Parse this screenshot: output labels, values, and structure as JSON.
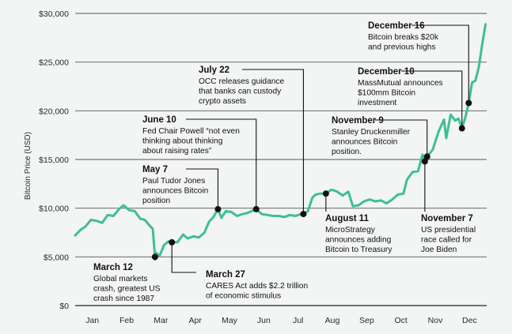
{
  "chart_data": {
    "type": "line",
    "title": "",
    "xlabel": "",
    "ylabel": "Bitcoin Price (USD)",
    "ylim": [
      0,
      30000
    ],
    "yticks": [
      0,
      5000,
      10000,
      15000,
      20000,
      25000,
      30000
    ],
    "ytick_labels": [
      "$0",
      "$5,000",
      "$10,000",
      "$15,000",
      "$20,000",
      "$25,000",
      "$30,000"
    ],
    "xlim": [
      "2020-01-01",
      "2021-01-01"
    ],
    "xticks": [
      "Jan",
      "Feb",
      "Mar",
      "Apr",
      "May",
      "Jun",
      "Jul",
      "Aug",
      "Sep",
      "Oct",
      "Nov",
      "Dec"
    ],
    "grid": "horizontal",
    "line_color": "#3dbf94",
    "series": [
      {
        "name": "",
        "x": [
          "2020-01-01",
          "2020-01-06",
          "2020-01-10",
          "2020-01-15",
          "2020-01-20",
          "2020-01-25",
          "2020-01-30",
          "2020-02-04",
          "2020-02-09",
          "2020-02-13",
          "2020-02-18",
          "2020-02-23",
          "2020-02-28",
          "2020-03-03",
          "2020-03-08",
          "2020-03-10",
          "2020-03-12",
          "2020-03-13",
          "2020-03-16",
          "2020-03-20",
          "2020-03-24",
          "2020-03-27",
          "2020-04-01",
          "2020-04-06",
          "2020-04-10",
          "2020-04-15",
          "2020-04-20",
          "2020-04-25",
          "2020-04-29",
          "2020-05-03",
          "2020-05-07",
          "2020-05-10",
          "2020-05-14",
          "2020-05-19",
          "2020-05-24",
          "2020-05-29",
          "2020-06-02",
          "2020-06-06",
          "2020-06-10",
          "2020-06-15",
          "2020-06-20",
          "2020-06-25",
          "2020-06-30",
          "2020-07-05",
          "2020-07-10",
          "2020-07-15",
          "2020-07-20",
          "2020-07-22",
          "2020-07-26",
          "2020-07-30",
          "2020-08-02",
          "2020-08-06",
          "2020-08-11",
          "2020-08-16",
          "2020-08-21",
          "2020-08-26",
          "2020-08-31",
          "2020-09-04",
          "2020-09-09",
          "2020-09-14",
          "2020-09-19",
          "2020-09-24",
          "2020-09-29",
          "2020-10-04",
          "2020-10-09",
          "2020-10-14",
          "2020-10-19",
          "2020-10-22",
          "2020-10-27",
          "2020-11-01",
          "2020-11-05",
          "2020-11-07",
          "2020-11-09",
          "2020-11-14",
          "2020-11-19",
          "2020-11-24",
          "2020-11-26",
          "2020-11-30",
          "2020-12-04",
          "2020-12-07",
          "2020-12-10",
          "2020-12-13",
          "2020-12-16",
          "2020-12-19",
          "2020-12-22",
          "2020-12-25",
          "2020-12-28",
          "2020-12-31"
        ],
        "y": [
          7200,
          7800,
          8100,
          8800,
          8700,
          8500,
          9300,
          9200,
          9900,
          10300,
          9800,
          9700,
          8900,
          8800,
          8100,
          7900,
          5000,
          5400,
          5100,
          6200,
          6600,
          6500,
          6500,
          7300,
          6900,
          7100,
          7000,
          7500,
          8600,
          9100,
          9900,
          9000,
          9700,
          9600,
          9200,
          9400,
          9500,
          9700,
          9900,
          9400,
          9300,
          9200,
          9200,
          9100,
          9300,
          9200,
          9400,
          9400,
          9700,
          11100,
          11400,
          11500,
          11500,
          11900,
          11700,
          11300,
          11700,
          10200,
          10300,
          10700,
          10900,
          10700,
          10800,
          10500,
          10900,
          11400,
          11500,
          12900,
          13700,
          13800,
          15500,
          14800,
          15300,
          16000,
          17800,
          19100,
          17200,
          19600,
          19000,
          19200,
          18200,
          19300,
          20800,
          22900,
          23100,
          24500,
          26800,
          28900
        ]
      }
    ],
    "annotations": [
      {
        "date": "2020-03-12",
        "value": 5000,
        "title": "March 12",
        "lines": [
          "Global markets",
          "crash, greatest US",
          "crash since 1987"
        ]
      },
      {
        "date": "2020-03-27",
        "value": 6500,
        "title": "March 27",
        "lines": [
          "CARES Act adds $2.2 trillion",
          "of economic stimulus"
        ]
      },
      {
        "date": "2020-05-07",
        "value": 9900,
        "title": "May 7",
        "lines": [
          "Paul Tudor Jones",
          "announces Bitcoin",
          "position"
        ]
      },
      {
        "date": "2020-06-10",
        "value": 9900,
        "title": "June 10",
        "lines": [
          "Fed Chair Powell “not even",
          "thinking about thinking",
          "about raising rates”"
        ]
      },
      {
        "date": "2020-07-22",
        "value": 9400,
        "title": "July 22",
        "lines": [
          "OCC releases guidance",
          "that banks can custody",
          "crypto assets"
        ]
      },
      {
        "date": "2020-08-11",
        "value": 11500,
        "title": "August 11",
        "lines": [
          "MicroStrategy",
          "announces adding",
          "Bitcoin to Treasury"
        ]
      },
      {
        "date": "2020-11-07",
        "value": 14800,
        "title": "November 7",
        "lines": [
          "US presidential",
          "race called for",
          "Joe Biden"
        ]
      },
      {
        "date": "2020-11-09",
        "value": 15300,
        "title": "November 9",
        "lines": [
          "Stanley Druckenmiller",
          "announces Bitcoin",
          "position."
        ]
      },
      {
        "date": "2020-12-10",
        "value": 18200,
        "title": "December 10",
        "lines": [
          "MassMutual announces",
          "$100mm Bitcoin",
          "investment"
        ]
      },
      {
        "date": "2020-12-16",
        "value": 20800,
        "title": "December 16",
        "lines": [
          "Bitcoin breaks $20k",
          "and previous highs"
        ]
      }
    ]
  }
}
